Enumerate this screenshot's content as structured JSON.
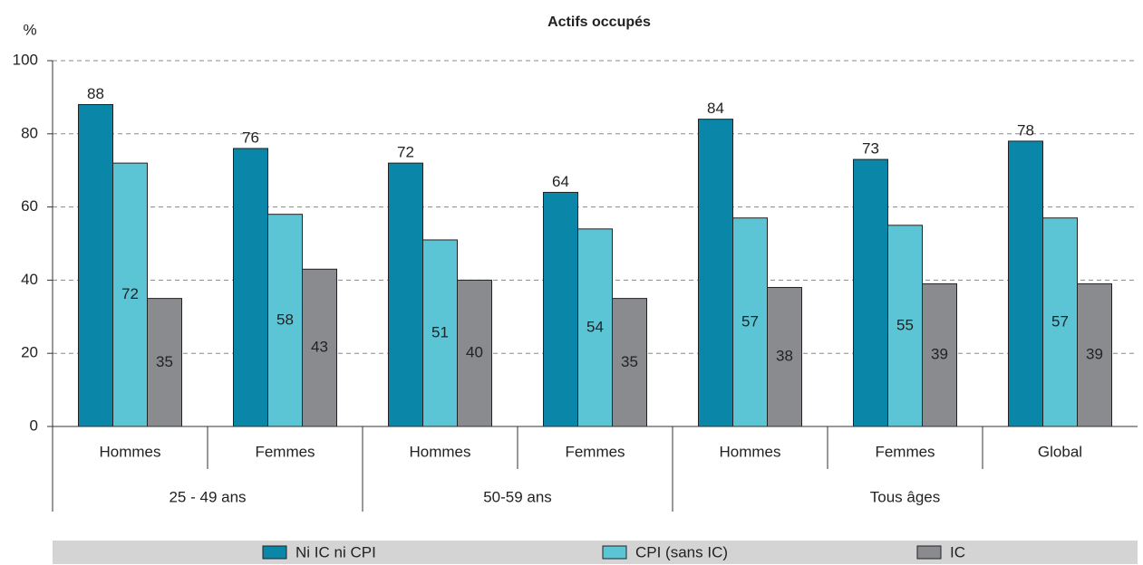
{
  "chart_data": {
    "type": "bar",
    "title": "Actifs occupés",
    "y_label": "%",
    "groups": [
      {
        "name": "25 - 49 ans",
        "categories": [
          "Hommes",
          "Femmes"
        ]
      },
      {
        "name": "50-59 ans",
        "categories": [
          "Hommes",
          "Femmes"
        ]
      },
      {
        "name": "Tous âges",
        "categories": [
          "Hommes",
          "Femmes",
          "Global"
        ]
      }
    ],
    "series": [
      {
        "name": "Ni IC ni CPI",
        "color": "#0a87a8",
        "values": [
          88,
          76,
          72,
          64,
          84,
          73,
          78
        ]
      },
      {
        "name": "CPI (sans IC)",
        "color": "#5bc5d6",
        "values": [
          72,
          58,
          51,
          54,
          57,
          55,
          57
        ]
      },
      {
        "name": "IC",
        "color": "#8a8b8f",
        "values": [
          35,
          43,
          40,
          35,
          38,
          39,
          39
        ]
      }
    ],
    "ylim": [
      0,
      100
    ],
    "yticks": [
      0,
      20,
      40,
      60,
      80,
      100
    ],
    "grid": true,
    "legend": "bottom"
  }
}
